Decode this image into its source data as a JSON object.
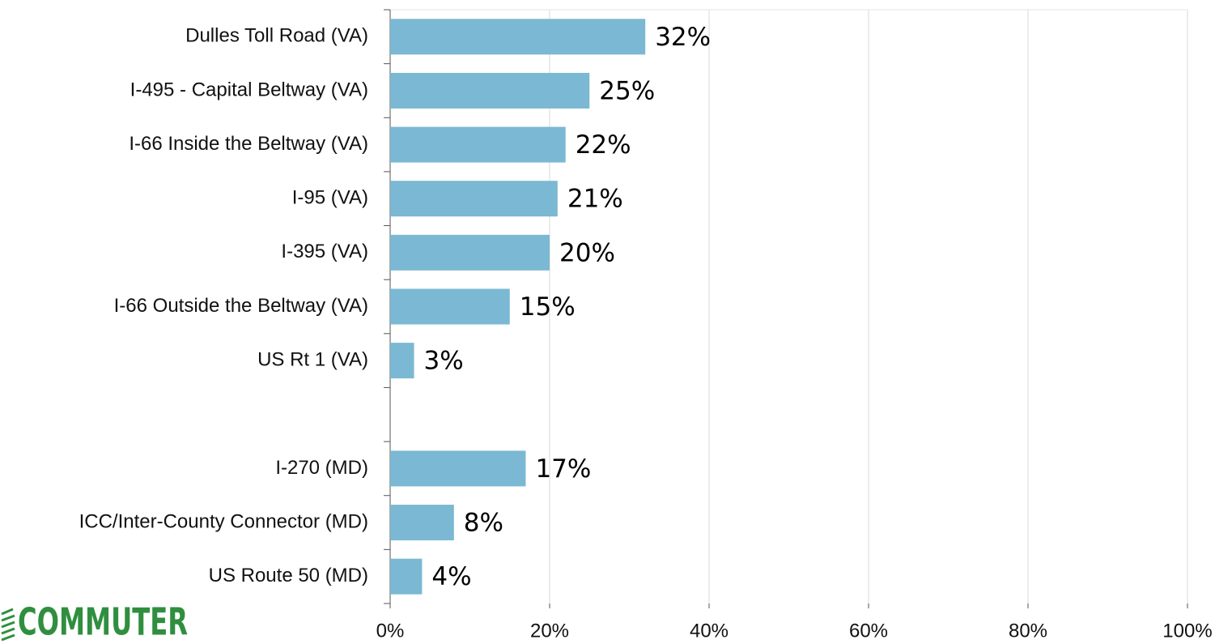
{
  "chart_data": {
    "type": "bar",
    "orientation": "horizontal",
    "categories": [
      "Dulles Toll Road (VA)",
      "I-495 - Capital Beltway (VA)",
      "I-66 Inside the Beltway (VA)",
      "I-95 (VA)",
      "I-395 (VA)",
      "I-66 Outside the Beltway (VA)",
      "US Rt 1 (VA)",
      null,
      "I-270 (MD)",
      "ICC/Inter-County Connector (MD)",
      "US Route 50 (MD)"
    ],
    "values": [
      32,
      25,
      22,
      21,
      20,
      15,
      3,
      null,
      17,
      8,
      4
    ],
    "value_labels": [
      "32%",
      "25%",
      "22%",
      "21%",
      "20%",
      "15%",
      "3%",
      null,
      "17%",
      "8%",
      "4%"
    ],
    "color": "#7bb8d3",
    "xlim": [
      0,
      100
    ],
    "xticks": [
      {
        "value": 0,
        "label": "0%"
      },
      {
        "value": 20,
        "label": "20%"
      },
      {
        "value": 40,
        "label": "40%"
      },
      {
        "value": 60,
        "label": "60%"
      },
      {
        "value": 80,
        "label": "80%"
      },
      {
        "value": 100,
        "label": "100%"
      }
    ],
    "grid": true,
    "logo": "COMMUTER"
  }
}
